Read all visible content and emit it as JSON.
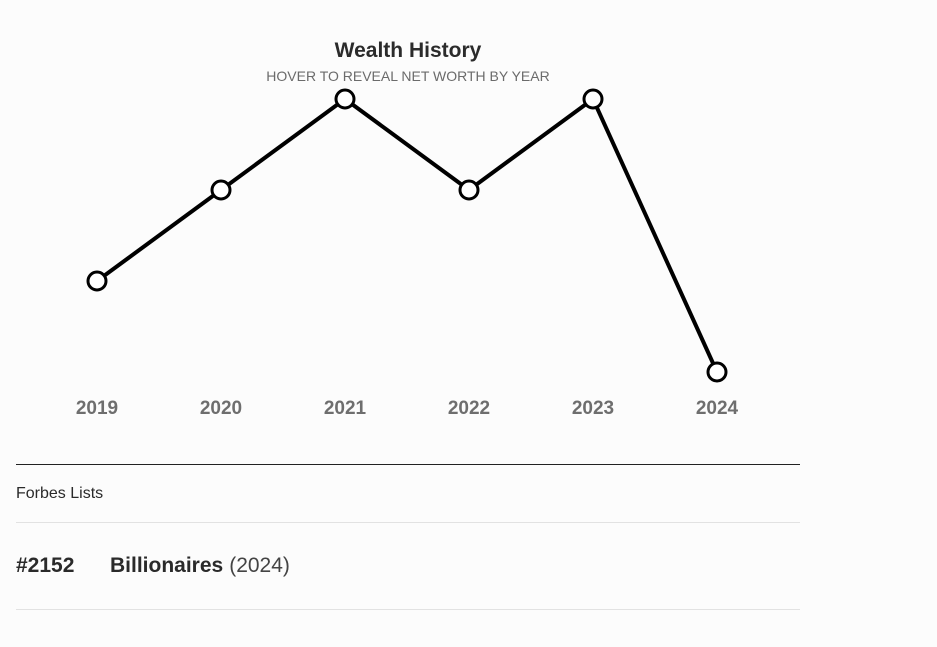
{
  "chart_data": {
    "type": "line",
    "title": "Wealth History",
    "subtitle": "HOVER TO REVEAL NET WORTH BY YEAR",
    "categories": [
      "2019",
      "2020",
      "2021",
      "2022",
      "2023",
      "2024"
    ],
    "values": [
      2,
      3,
      4,
      3,
      4,
      1
    ],
    "ylim": [
      1,
      4
    ],
    "grid": false,
    "line_color": "#000000",
    "marker_fill": "#ffffff"
  },
  "forbes_lists": {
    "heading": "Forbes Lists",
    "items": [
      {
        "rank": "#2152",
        "name": "Billionaires",
        "year": "(2024)"
      }
    ]
  }
}
